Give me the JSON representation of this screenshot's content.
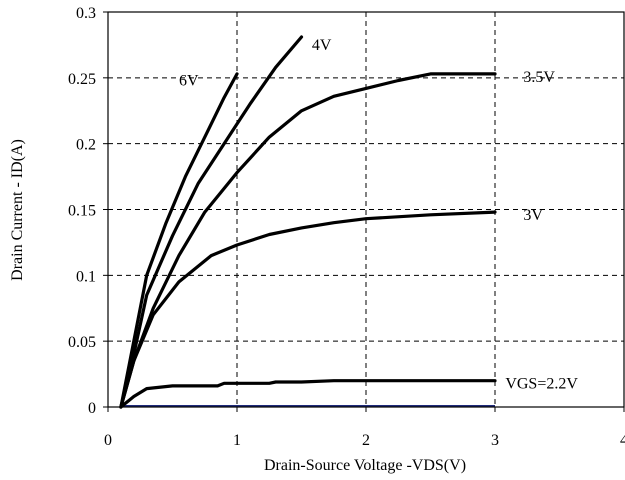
{
  "chart_data": {
    "type": "line",
    "title": "",
    "xlabel": "Drain-Source Voltage -VDS(V)",
    "ylabel": "Drain Current - ID(A)",
    "xlim": [
      0,
      4
    ],
    "ylim": [
      0,
      0.3
    ],
    "x_ticks": [
      "0",
      "1",
      "2",
      "3",
      "4"
    ],
    "y_ticks": [
      "0",
      "0.05",
      "0.1",
      "0.15",
      "0.2",
      "0.25",
      "0.3"
    ],
    "grid": true,
    "series": [
      {
        "name": "6V",
        "x": [
          0.1,
          0.2,
          0.3,
          0.45,
          0.6,
          0.75,
          0.9,
          1.0
        ],
        "y": [
          0,
          0.05,
          0.1,
          0.14,
          0.175,
          0.205,
          0.235,
          0.253
        ]
      },
      {
        "name": "4V",
        "x": [
          0.1,
          0.2,
          0.3,
          0.5,
          0.7,
          0.9,
          1.1,
          1.3,
          1.5
        ],
        "y": [
          0,
          0.04,
          0.085,
          0.13,
          0.17,
          0.2,
          0.23,
          0.258,
          0.281
        ]
      },
      {
        "name": "3.5V",
        "x": [
          0.1,
          0.2,
          0.35,
          0.55,
          0.75,
          1.0,
          1.25,
          1.5,
          1.75,
          2.0,
          2.25,
          2.5,
          2.75,
          3.0
        ],
        "y": [
          0,
          0.035,
          0.075,
          0.115,
          0.148,
          0.178,
          0.205,
          0.225,
          0.236,
          0.242,
          0.248,
          0.253,
          0.253,
          0.253
        ]
      },
      {
        "name": "3V",
        "x": [
          0.1,
          0.2,
          0.35,
          0.55,
          0.8,
          1.0,
          1.25,
          1.5,
          1.75,
          2.0,
          2.5,
          3.0
        ],
        "y": [
          0,
          0.035,
          0.07,
          0.095,
          0.115,
          0.123,
          0.131,
          0.136,
          0.14,
          0.143,
          0.146,
          0.148
        ]
      },
      {
        "name": "VGS=2.2V",
        "x": [
          0.1,
          0.2,
          0.3,
          0.5,
          0.7,
          0.85,
          0.9,
          1.1,
          1.25,
          1.3,
          1.5,
          1.75,
          2.0,
          2.5,
          3.0
        ],
        "y": [
          0,
          0.008,
          0.014,
          0.016,
          0.016,
          0.016,
          0.018,
          0.018,
          0.018,
          0.019,
          0.019,
          0.02,
          0.02,
          0.02,
          0.02
        ]
      }
    ]
  }
}
